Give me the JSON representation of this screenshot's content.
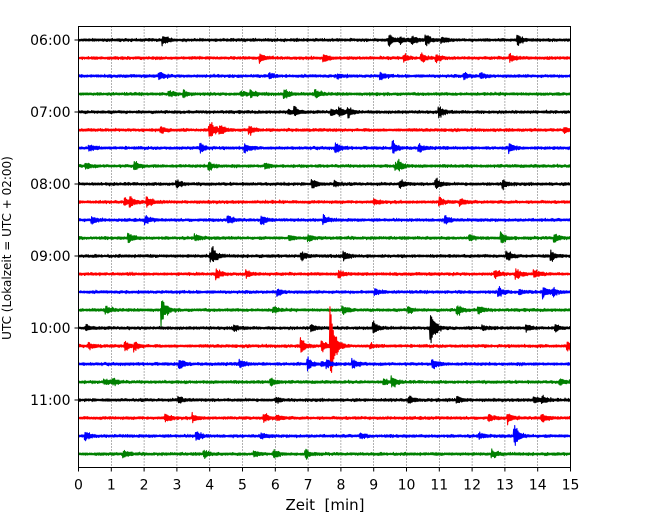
{
  "chart_data": {
    "type": "line",
    "subtype": "helicorder",
    "title": "",
    "xlabel": "Zeit  [min]",
    "ylabel": "UTC (Lokalzeit = UTC + 02:00)",
    "xlim": [
      0,
      15
    ],
    "x_ticks": [
      0,
      1,
      2,
      3,
      4,
      5,
      6,
      7,
      8,
      9,
      10,
      11,
      12,
      13,
      14,
      15
    ],
    "y_tick_labels": [
      "06:00",
      "07:00",
      "08:00",
      "09:00",
      "10:00",
      "11:00"
    ],
    "y_tick_trace_index": [
      0,
      4,
      8,
      12,
      16,
      20
    ],
    "minutes_per_trace": 15,
    "trace_start_times": [
      "06:00",
      "06:15",
      "06:30",
      "06:45",
      "07:00",
      "07:15",
      "07:30",
      "07:45",
      "08:00",
      "08:15",
      "08:30",
      "08:45",
      "09:00",
      "09:15",
      "09:30",
      "09:45",
      "10:00",
      "10:15",
      "10:30",
      "10:45",
      "11:00",
      "11:15",
      "11:30",
      "11:45"
    ],
    "trace_colors": [
      "#000000",
      "#ff0000",
      "#0000ff",
      "#008000"
    ],
    "grid": {
      "x": true,
      "y": false,
      "style": "dotted"
    },
    "events": [
      {
        "trace": 15,
        "minute": 2.55,
        "amplitude": 0.9
      },
      {
        "trace": 16,
        "minute": 10.75,
        "amplitude": 1.3
      },
      {
        "trace": 17,
        "minute": 7.7,
        "amplitude": 2.9
      },
      {
        "trace": 17,
        "minute": 6.8,
        "amplitude": 0.5
      },
      {
        "trace": 18,
        "minute": 7.0,
        "amplitude": 0.45
      },
      {
        "trace": 11,
        "minute": 12.9,
        "amplitude": 0.45
      },
      {
        "trace": 6,
        "minute": 9.6,
        "amplitude": 0.45
      },
      {
        "trace": 22,
        "minute": 13.3,
        "amplitude": 0.5
      },
      {
        "trace": 21,
        "minute": 13.1,
        "amplitude": 0.35
      },
      {
        "trace": 0,
        "minute": 13.4,
        "amplitude": 0.4
      },
      {
        "trace": 16,
        "minute": 9.0,
        "amplitude": 0.4
      }
    ]
  }
}
